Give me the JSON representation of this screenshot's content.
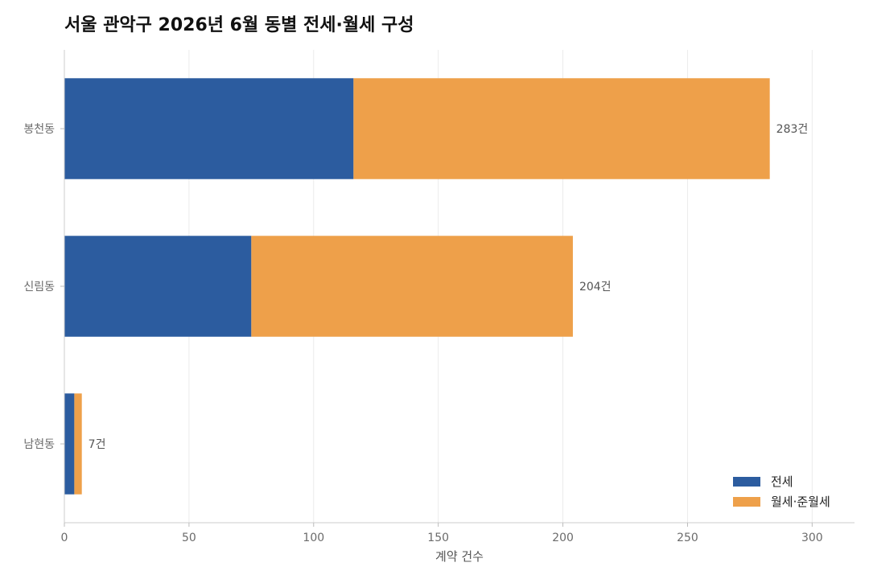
{
  "chart_data": {
    "type": "bar",
    "orientation": "horizontal",
    "stacked": true,
    "title": "서울 관악구 2026년 6월 동별 전세·월세 구성",
    "xlabel": "계약 건수",
    "ylabel": "",
    "xlim": [
      0,
      317
    ],
    "xticks": [
      0,
      50,
      100,
      150,
      200,
      250,
      300
    ],
    "grid": "vertical",
    "legend_position": "bottom-right",
    "categories": [
      "봉천동",
      "신림동",
      "남현동"
    ],
    "series": [
      {
        "name": "전세",
        "color": "#2c5c9f",
        "values": [
          116,
          75,
          4
        ]
      },
      {
        "name": "월세·준월세",
        "color": "#eea04a",
        "values": [
          167,
          129,
          3
        ]
      }
    ],
    "totals": [
      283,
      204,
      7
    ],
    "total_labels": [
      "283건",
      "204건",
      "7건"
    ]
  }
}
